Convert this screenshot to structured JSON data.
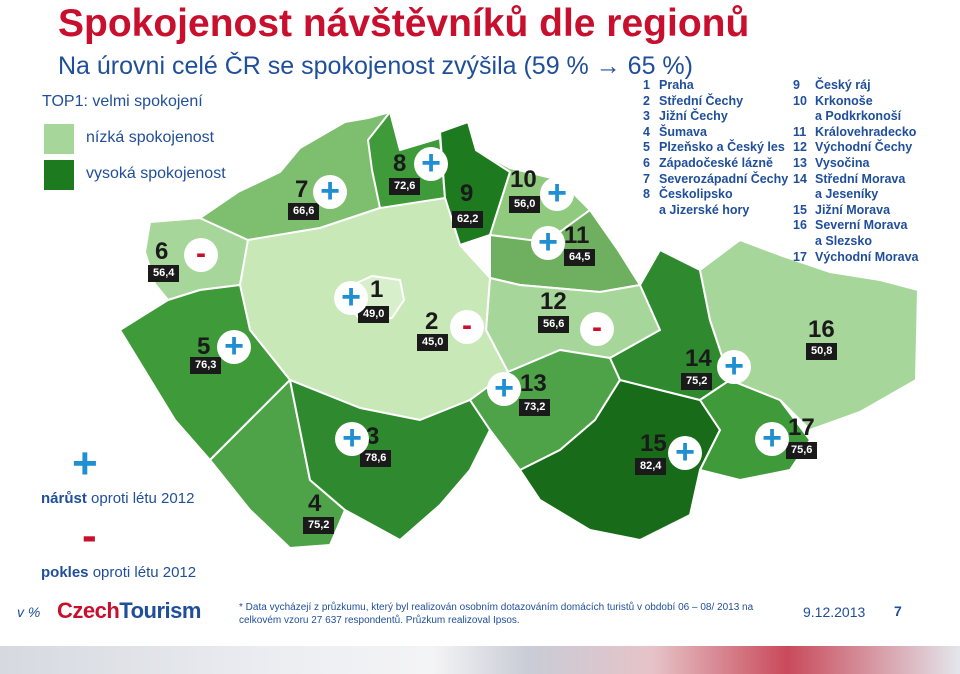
{
  "header": {
    "title": "Spokojenost návštěvníků dle regionů",
    "subtitle": "Na úrovni celé ČR se spokojenost zvýšila (59 % → 65 %)"
  },
  "legend": {
    "title": "TOP1: velmi spokojení",
    "low": {
      "label": "nízká spokojenost",
      "color": "#a6d69a"
    },
    "high": {
      "label": "vysoká spokojenost",
      "color": "#1e7a1e"
    },
    "increase": {
      "sign": "+",
      "bold": "nárůst",
      "rest": " oproti létu 2012",
      "color": "#1f8fd1"
    },
    "decrease": {
      "sign": "-",
      "bold": "pokles",
      "rest": " oproti létu 2012",
      "color": "#c8102e"
    }
  },
  "regions": [
    {
      "num": "1",
      "name": "Praha",
      "value": "49,0",
      "change": "+"
    },
    {
      "num": "2",
      "name": "Střední Čechy",
      "value": "45,0",
      "change": "-"
    },
    {
      "num": "3",
      "name": "Jižní Čechy",
      "value": "78,6",
      "change": "+"
    },
    {
      "num": "4",
      "name": "Šumava",
      "value": "75,2",
      "change": ""
    },
    {
      "num": "5",
      "name": "Plzeňsko a Český les",
      "value": "76,3",
      "change": "+"
    },
    {
      "num": "6",
      "name": "Západočeské lázně",
      "value": "56,4",
      "change": "-"
    },
    {
      "num": "7",
      "name": "Severozápadní Čechy",
      "value": "66,6",
      "change": "+"
    },
    {
      "num": "8",
      "name": "Českolipsko a Jizerské hory",
      "value": "72,6",
      "change": "+"
    },
    {
      "num": "9",
      "name": "Český ráj",
      "value": "62,2",
      "change": ""
    },
    {
      "num": "10",
      "name": "Krkonoše a Podkrkonoší",
      "value": "56,0",
      "change": "+"
    },
    {
      "num": "11",
      "name": "Královehradecko",
      "value": "64,5",
      "change": "+"
    },
    {
      "num": "12",
      "name": "Východní Čechy",
      "value": "56,6",
      "change": "-"
    },
    {
      "num": "13",
      "name": "Vysočina",
      "value": "73,2",
      "change": "+"
    },
    {
      "num": "14",
      "name": "Střední Morava a Jeseníky",
      "value": "75,2",
      "change": "+"
    },
    {
      "num": "15",
      "name": "Jižní Morava",
      "value": "82,4",
      "change": "+"
    },
    {
      "num": "16",
      "name": "Severní Morava a Slezsko",
      "value": "50,8",
      "change": ""
    },
    {
      "num": "17",
      "name": "Východní Morava",
      "value": "75,6",
      "change": "+"
    }
  ],
  "region_list_col1": [
    {
      "num": "1",
      "text": "Praha"
    },
    {
      "num": "2",
      "text": "Střední Čechy"
    },
    {
      "num": "3",
      "text": "Jižní Čechy"
    },
    {
      "num": "4",
      "text": "Šumava"
    },
    {
      "num": "5",
      "text": "Plzeňsko a Český les"
    },
    {
      "num": "6",
      "text": "Západočeské lázně"
    },
    {
      "num": "7",
      "text": "Severozápadní Čechy"
    },
    {
      "num": "8",
      "text": "Českolipsko"
    },
    {
      "num": "",
      "text": "a Jizerské hory"
    }
  ],
  "region_list_col2": [
    {
      "num": "9",
      "text": "Český ráj"
    },
    {
      "num": "10",
      "text": "Krkonoše"
    },
    {
      "num": "",
      "text": "a Podkrkonoší"
    },
    {
      "num": "11",
      "text": "Královehradecko"
    },
    {
      "num": "12",
      "text": "Východní Čechy"
    },
    {
      "num": "13",
      "text": "Vysočina"
    },
    {
      "num": "14",
      "text": "Střední Morava"
    },
    {
      "num": "",
      "text": "a Jeseníky"
    },
    {
      "num": "15",
      "text": "Jižní Morava"
    },
    {
      "num": "16",
      "text": "Severní Morava"
    },
    {
      "num": "",
      "text": "a Slezsko"
    },
    {
      "num": "17",
      "text": "Východní Morava"
    }
  ],
  "footer": {
    "unit": "v %",
    "logo_a": "Czech",
    "logo_b": "Tourism",
    "footnote": "* Data vycházejí z průzkumu, který byl realizován osobním dotazováním domácích turistů v období 06 – 08/ 2013 na celkovém vzoru 27 637  respondentů. Průzkum realizoval Ipsos.",
    "date": "9.12.2013",
    "page": "7"
  },
  "colors": {
    "title": "#c8102e",
    "text": "#1f4e9a",
    "plus": "#1f8fd1",
    "minus": "#c8102e",
    "label_bg": "#1a1a1a"
  }
}
